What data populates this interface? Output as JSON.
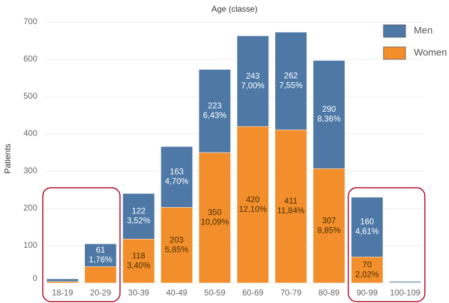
{
  "chart_data": {
    "type": "stacked_bar",
    "title": "Age (classe)",
    "y_label": "Patients",
    "categories": [
      "18-19",
      "20-29",
      "30-39",
      "40-49",
      "50-59",
      "60-69",
      "70-79",
      "80-89",
      "90-99",
      "100-109"
    ],
    "series": [
      {
        "name": "Women",
        "color": "#f28e2b",
        "values": [
          4,
          44,
          118,
          203,
          350,
          420,
          411,
          307,
          70,
          1
        ],
        "percent_labels": [
          null,
          null,
          "3,40%",
          "5,85%",
          "10,09%",
          "12,10%",
          "11,84%",
          "8,85%",
          "2,02%",
          null
        ]
      },
      {
        "name": "Men",
        "color": "#4e79a7",
        "values": [
          7,
          61,
          122,
          163,
          223,
          243,
          262,
          290,
          160,
          3
        ],
        "percent_labels": [
          null,
          "1,76%",
          "3,52%",
          "4,70%",
          "6,43%",
          "7,00%",
          "7,55%",
          "8,36%",
          "4,61%",
          null
        ]
      }
    ],
    "ylim": [
      0,
      700
    ],
    "yticks": [
      0,
      100,
      200,
      300,
      400,
      500,
      600,
      700
    ],
    "grid": true,
    "legend": "top-right"
  }
}
